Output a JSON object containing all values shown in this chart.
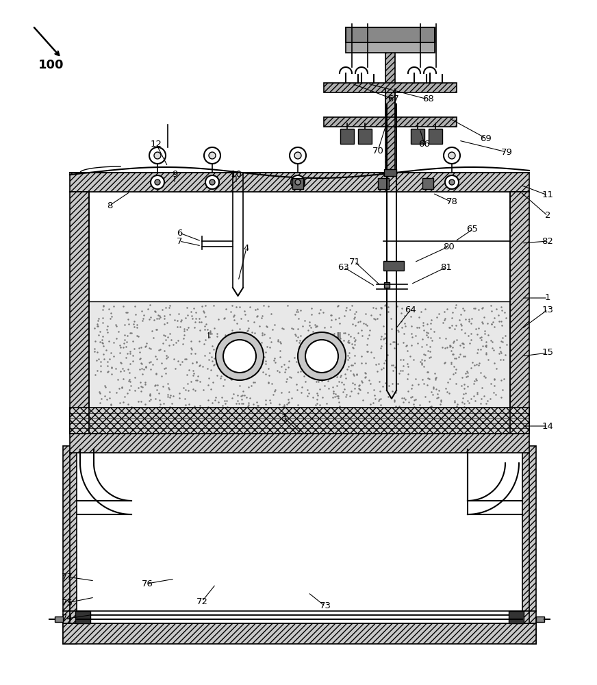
{
  "bg_color": "#ffffff",
  "line_color": "#000000",
  "fig_width": 8.72,
  "fig_height": 10.0,
  "hatch_gray": "#c8c8c8",
  "soil_color": "#e8e8e8",
  "dark_gray": "#555555",
  "mid_gray": "#888888"
}
